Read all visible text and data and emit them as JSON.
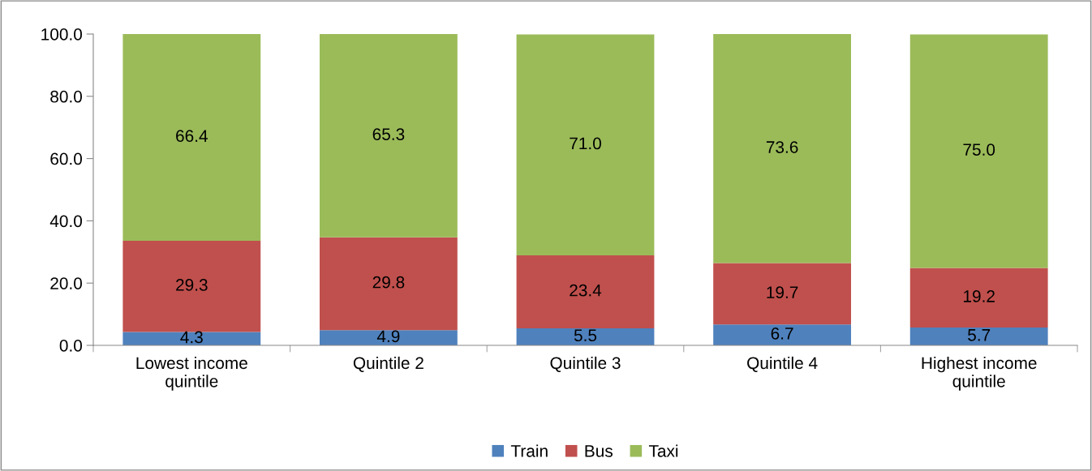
{
  "chart_data": {
    "type": "bar",
    "stacked": true,
    "categories": [
      "Lowest income\nquintile",
      "Quintile 2",
      "Quintile 3",
      "Quintile 4",
      "Highest income\nquintile"
    ],
    "series": [
      {
        "name": "Train",
        "color": "#4f81bd",
        "values": [
          4.3,
          4.9,
          5.5,
          6.7,
          5.7
        ],
        "value_labels": [
          "4.3",
          "4.9",
          "5.5",
          "6.7",
          "5.7"
        ]
      },
      {
        "name": "Bus",
        "color": "#c0504d",
        "values": [
          29.3,
          29.8,
          23.4,
          19.7,
          19.2
        ],
        "value_labels": [
          "29.3",
          "29.8",
          "23.4",
          "19.7",
          "19.2"
        ]
      },
      {
        "name": "Taxi",
        "color": "#9bbb59",
        "values": [
          66.4,
          65.3,
          71,
          73.6,
          75
        ],
        "value_labels": [
          "66.4",
          "65.3",
          "71.0",
          "73.6",
          "75.0"
        ]
      }
    ],
    "ylim": [
      0,
      100
    ],
    "yticks": [
      {
        "value": 0,
        "label": "0.0"
      },
      {
        "value": 20,
        "label": "20.0"
      },
      {
        "value": 40,
        "label": "40.0"
      },
      {
        "value": 60,
        "label": "60.0"
      },
      {
        "value": 80,
        "label": "80.0"
      },
      {
        "value": 100,
        "label": "100.0"
      }
    ],
    "grid": false,
    "legend": "bottom"
  }
}
